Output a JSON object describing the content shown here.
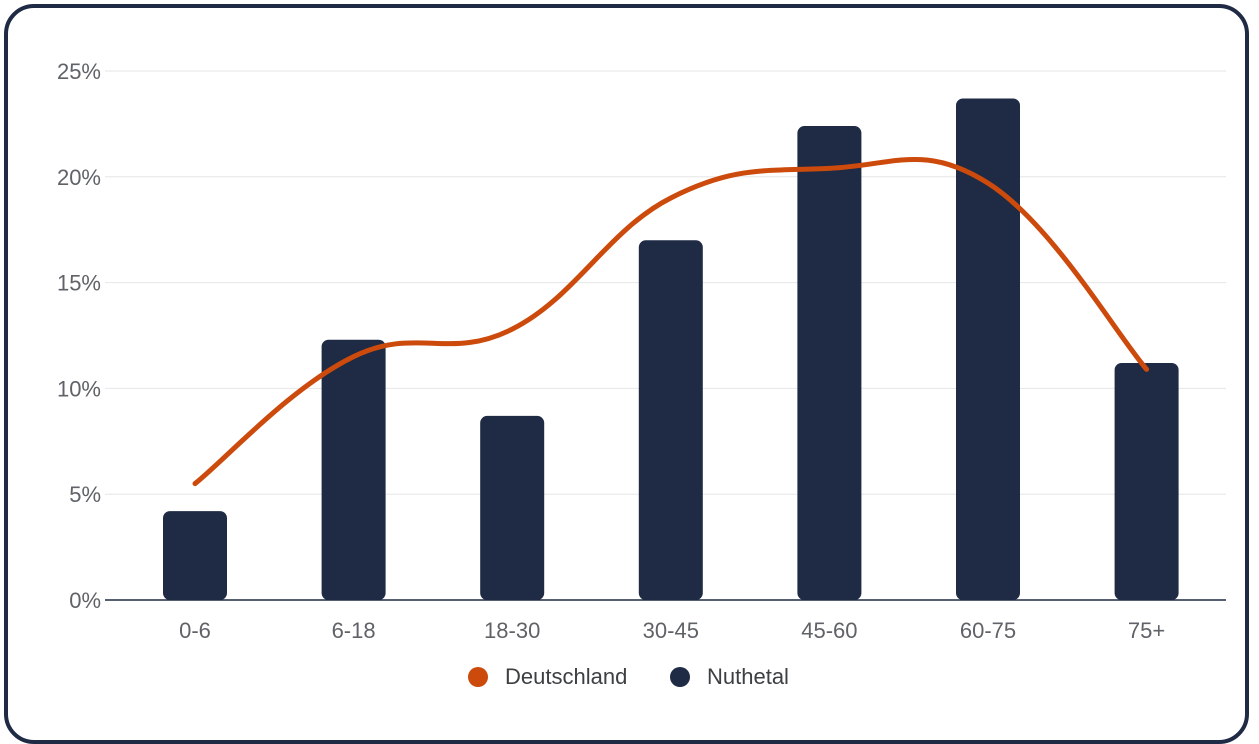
{
  "chart_data": {
    "type": "bar",
    "categories": [
      "0-6",
      "6-18",
      "18-30",
      "30-45",
      "45-60",
      "60-75",
      "75+"
    ],
    "series": [
      {
        "name": "Nuthetal",
        "kind": "bar",
        "color": "#1f2a44",
        "values": [
          4.2,
          12.3,
          8.7,
          17.0,
          22.4,
          23.7,
          11.2
        ]
      },
      {
        "name": "Deutschland",
        "kind": "line",
        "color": "#cc4a0c",
        "values": [
          5.5,
          11.5,
          12.8,
          19.0,
          20.4,
          19.7,
          10.9
        ]
      }
    ],
    "ylim": [
      0,
      25
    ],
    "yticks": [
      "0%",
      "5%",
      "10%",
      "15%",
      "20%",
      "25%"
    ],
    "grid": true,
    "legend_position": "bottom"
  },
  "legend": {
    "items": [
      {
        "label": "Deutschland",
        "color": "#cc4a0c"
      },
      {
        "label": "Nuthetal",
        "color": "#1f2a44"
      }
    ]
  }
}
